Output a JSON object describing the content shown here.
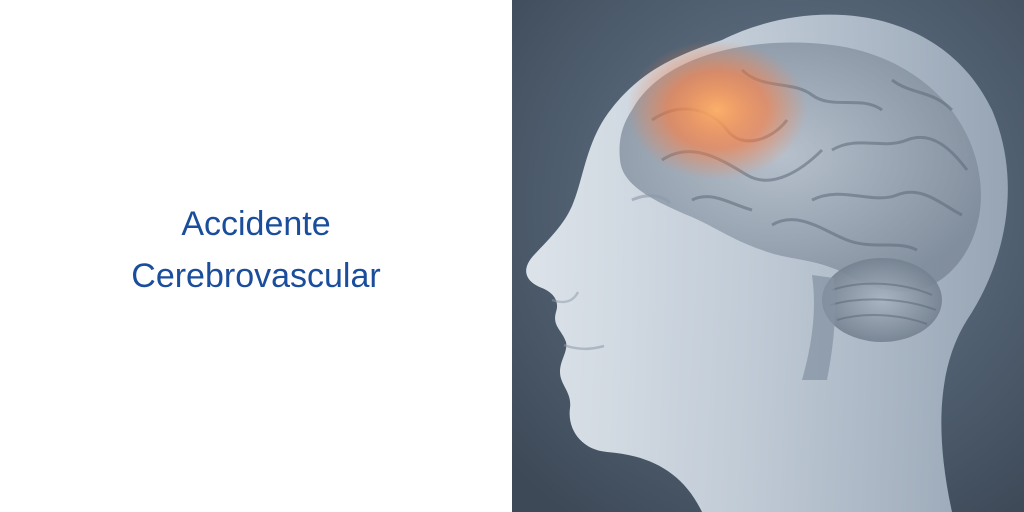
{
  "title": {
    "line1": "Accidente",
    "line2": "Cerebrovascular"
  },
  "colors": {
    "title": "#1a4d9c",
    "background_left": "#ffffff",
    "background_right": "#4f5e6f",
    "head": "#c9d3dd",
    "brain": "#8e9aa8",
    "highlight": "#ff8a3c"
  },
  "image": {
    "subject": "head-with-brain-illustration"
  }
}
